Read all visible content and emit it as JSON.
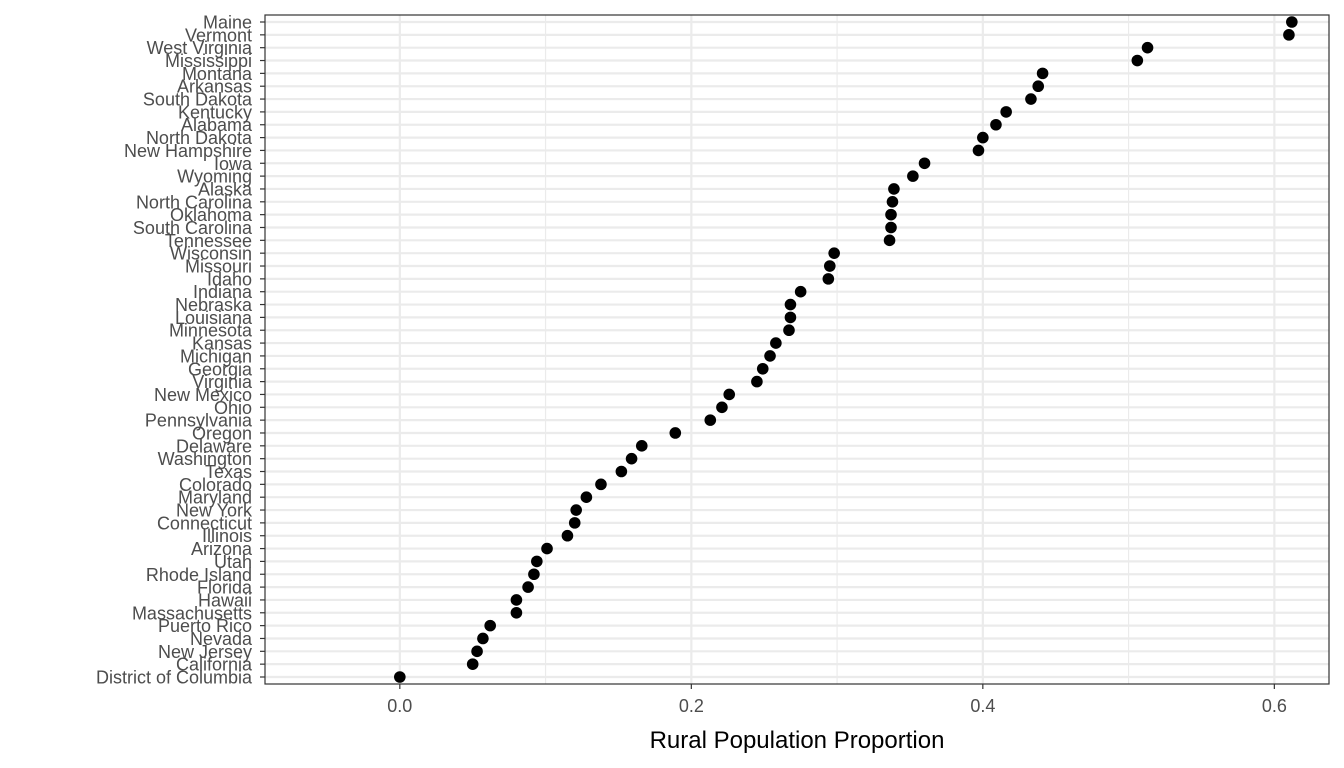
{
  "chart_data": {
    "type": "scatter",
    "title": "",
    "xlabel": "Rural Population Proportion",
    "ylabel": "",
    "xlim": [
      -0.0925,
      0.6375
    ],
    "x_ticks": [
      0.0,
      0.2,
      0.4,
      0.6
    ],
    "x_tick_labels": [
      "0.0",
      "0.2",
      "0.4",
      "0.6"
    ],
    "grid": true,
    "point_color": "#000000",
    "categories": [
      "District of Columbia",
      "California",
      "New Jersey",
      "Nevada",
      "Puerto Rico",
      "Massachusetts",
      "Hawaii",
      "Florida",
      "Rhode Island",
      "Utah",
      "Arizona",
      "Illinois",
      "Connecticut",
      "New York",
      "Maryland",
      "Colorado",
      "Texas",
      "Washington",
      "Delaware",
      "Oregon",
      "Pennsylvania",
      "Ohio",
      "New Mexico",
      "Virginia",
      "Georgia",
      "Michigan",
      "Kansas",
      "Minnesota",
      "Louisiana",
      "Nebraska",
      "Indiana",
      "Idaho",
      "Missouri",
      "Wisconsin",
      "Tennessee",
      "South Carolina",
      "Oklahoma",
      "North Carolina",
      "Alaska",
      "Wyoming",
      "Iowa",
      "New Hampshire",
      "North Dakota",
      "Alabama",
      "Kentucky",
      "South Dakota",
      "Arkansas",
      "Montana",
      "Mississippi",
      "West Virginia",
      "Vermont",
      "Maine"
    ],
    "values": [
      0.0,
      0.05,
      0.053,
      0.057,
      0.062,
      0.08,
      0.08,
      0.088,
      0.092,
      0.094,
      0.101,
      0.115,
      0.12,
      0.121,
      0.128,
      0.138,
      0.152,
      0.159,
      0.166,
      0.189,
      0.213,
      0.221,
      0.226,
      0.245,
      0.249,
      0.254,
      0.258,
      0.267,
      0.268,
      0.268,
      0.275,
      0.294,
      0.295,
      0.298,
      0.336,
      0.337,
      0.337,
      0.338,
      0.339,
      0.352,
      0.36,
      0.397,
      0.4,
      0.409,
      0.416,
      0.433,
      0.438,
      0.441,
      0.506,
      0.513,
      0.61,
      0.612
    ]
  }
}
